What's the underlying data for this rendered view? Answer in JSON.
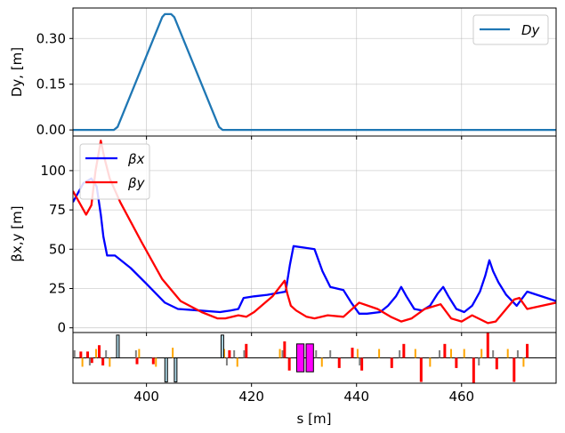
{
  "chart_data": [
    {
      "type": "line",
      "panel": "dispersion",
      "ylabel": "Dy, [m]",
      "ylim": [
        -0.02,
        0.4
      ],
      "yticks": [
        0.0,
        0.15,
        0.3
      ],
      "ytick_labels": [
        "0.00",
        "0.15",
        "0.30"
      ],
      "xlim": [
        386,
        478
      ],
      "grid": true,
      "legend_position": "top-right",
      "series": [
        {
          "name": "Dy",
          "color": "#1f77b4",
          "x": [
            386,
            393.8,
            394.5,
            403.0,
            403.5,
            404.7,
            405.3,
            413.8,
            414.5,
            478
          ],
          "y": [
            0.0,
            0.0,
            0.01,
            0.37,
            0.38,
            0.38,
            0.37,
            0.01,
            0.0,
            0.0
          ]
        }
      ]
    },
    {
      "type": "line",
      "panel": "beta",
      "ylabel": "βx,y [m]",
      "ylim": [
        -3,
        122
      ],
      "yticks": [
        0,
        25,
        50,
        75,
        100
      ],
      "ytick_labels": [
        "0",
        "25",
        "50",
        "75",
        "100"
      ],
      "xlim": [
        386,
        478
      ],
      "grid": true,
      "legend_position": "top-left",
      "series": [
        {
          "name": "βx",
          "color": "#0000ff",
          "x": [
            386,
            388,
            389.5,
            390.5,
            391.3,
            391.8,
            392.5,
            394,
            397,
            400,
            403.5,
            406,
            410,
            414,
            416,
            417.5,
            418.5,
            420.5,
            423,
            426.5,
            427.3,
            428,
            430,
            432,
            433.5,
            435,
            437.5,
            439,
            440.5,
            442,
            444.5,
            446,
            447.5,
            448.5,
            449.5,
            451,
            452.5,
            454,
            455.5,
            456.5,
            457.5,
            459,
            460.5,
            462,
            463.5,
            464.5,
            465.3,
            466,
            467,
            468.5,
            470.5,
            472.5,
            478
          ],
          "y": [
            80,
            92,
            95,
            90,
            72,
            58,
            46,
            46,
            38,
            28,
            16,
            12,
            11,
            10,
            11,
            12,
            19,
            20,
            21,
            23,
            40,
            52,
            51,
            50,
            36,
            26,
            24,
            16,
            9,
            9,
            10,
            14,
            20,
            26,
            20,
            12,
            11,
            14,
            22,
            26,
            20,
            12,
            10,
            14,
            23,
            33,
            43,
            36,
            29,
            21,
            14,
            23,
            17
          ]
        },
        {
          "name": "βy",
          "color": "#ff0000",
          "x": [
            386,
            388.5,
            389.5,
            390.3,
            391.3,
            392.0,
            393.0,
            395.0,
            399.0,
            403.0,
            406.5,
            410.5,
            413.5,
            415.0,
            417.5,
            419.0,
            420.5,
            424.0,
            426.3,
            426.8,
            427.5,
            428.5,
            430.5,
            432.0,
            434.5,
            437.5,
            440.5,
            444.0,
            446.5,
            448.5,
            450.5,
            453.0,
            456.0,
            458.0,
            460.0,
            462.0,
            465.0,
            466.5,
            468.0,
            470.0,
            471.0,
            472.5,
            478.0
          ],
          "y": [
            87,
            72,
            78,
            100,
            119,
            108,
            95,
            80,
            55,
            31,
            17,
            10,
            6,
            6,
            8,
            7,
            10,
            20,
            30,
            22,
            14,
            11,
            7,
            6,
            8,
            7,
            16,
            12,
            7,
            4,
            6,
            12,
            15,
            6,
            4,
            8,
            3,
            4,
            10,
            18,
            19,
            12,
            16
          ]
        }
      ]
    },
    {
      "type": "bar",
      "panel": "lattice",
      "xlabel": "s [m]",
      "xticks": [
        400,
        420,
        440,
        460
      ],
      "xtick_labels": [
        "400",
        "420",
        "440",
        "460"
      ],
      "xlim": [
        386,
        478
      ],
      "ylim": [
        -1,
        1
      ],
      "colors": {
        "quad_neg": "#ff0000",
        "quad_pos": "#ff0000",
        "sext": "#ffa500",
        "marker": "#808080",
        "dipole": "#add8e6",
        "block": "#ff00ff"
      },
      "elements": [
        {
          "kind": "quad",
          "s": 387.5,
          "h": 0.25
        },
        {
          "kind": "quad",
          "s": 388.8,
          "h": 0.25
        },
        {
          "kind": "quad",
          "s": 389.6,
          "h": -0.2
        },
        {
          "kind": "quad",
          "s": 391.0,
          "h": 0.5
        },
        {
          "kind": "quad",
          "s": 391.7,
          "h": -0.3
        },
        {
          "kind": "quad",
          "s": 398.2,
          "h": -0.25
        },
        {
          "kind": "quad",
          "s": 401.3,
          "h": -0.25
        },
        {
          "kind": "quad",
          "s": 415.8,
          "h": 0.3
        },
        {
          "kind": "quad",
          "s": 419.0,
          "h": 0.55
        },
        {
          "kind": "quad",
          "s": 426.3,
          "h": 0.65
        },
        {
          "kind": "quad",
          "s": 427.2,
          "h": -0.5
        },
        {
          "kind": "quad",
          "s": 436.7,
          "h": -0.4
        },
        {
          "kind": "quad",
          "s": 439.2,
          "h": 0.4
        },
        {
          "kind": "quad",
          "s": 441.0,
          "h": -0.5
        },
        {
          "kind": "quad",
          "s": 446.7,
          "h": -0.4
        },
        {
          "kind": "quad",
          "s": 449.0,
          "h": 0.55
        },
        {
          "kind": "quad",
          "s": 452.3,
          "h": -0.95
        },
        {
          "kind": "quad",
          "s": 456.8,
          "h": 0.55
        },
        {
          "kind": "quad",
          "s": 459.0,
          "h": -0.4
        },
        {
          "kind": "quad",
          "s": 462.3,
          "h": -1.0
        },
        {
          "kind": "quad",
          "s": 465.0,
          "h": 1.0
        },
        {
          "kind": "quad",
          "s": 466.7,
          "h": -0.45
        },
        {
          "kind": "quad",
          "s": 470.0,
          "h": -0.95
        },
        {
          "kind": "quad",
          "s": 472.5,
          "h": 0.55
        },
        {
          "kind": "sext",
          "s": 387.8,
          "h": -0.35
        },
        {
          "kind": "sext",
          "s": 390.4,
          "h": 0.35
        },
        {
          "kind": "sext",
          "s": 393.0,
          "h": -0.35
        },
        {
          "kind": "sext",
          "s": 398.6,
          "h": 0.35
        },
        {
          "kind": "sext",
          "s": 401.8,
          "h": -0.35
        },
        {
          "kind": "sext",
          "s": 405.0,
          "h": 0.4
        },
        {
          "kind": "sext",
          "s": 414.8,
          "h": 0.35
        },
        {
          "kind": "sext",
          "s": 417.3,
          "h": -0.35
        },
        {
          "kind": "sext",
          "s": 425.4,
          "h": 0.35
        },
        {
          "kind": "sext",
          "s": 433.4,
          "h": -0.35
        },
        {
          "kind": "sext",
          "s": 440.2,
          "h": 0.35
        },
        {
          "kind": "sext",
          "s": 444.3,
          "h": 0.35
        },
        {
          "kind": "sext",
          "s": 451.2,
          "h": 0.35
        },
        {
          "kind": "sext",
          "s": 454.0,
          "h": -0.35
        },
        {
          "kind": "sext",
          "s": 458.0,
          "h": 0.35
        },
        {
          "kind": "sext",
          "s": 460.5,
          "h": 0.35
        },
        {
          "kind": "sext",
          "s": 463.8,
          "h": 0.35
        },
        {
          "kind": "sext",
          "s": 468.8,
          "h": 0.35
        },
        {
          "kind": "sext",
          "s": 471.8,
          "h": -0.35
        },
        {
          "kind": "marker",
          "s": 386.3,
          "h": 0.3
        },
        {
          "kind": "marker",
          "s": 389.2,
          "h": -0.3
        },
        {
          "kind": "marker",
          "s": 392.3,
          "h": 0.3
        },
        {
          "kind": "marker",
          "s": 398.0,
          "h": 0.3
        },
        {
          "kind": "marker",
          "s": 415.3,
          "h": -0.3
        },
        {
          "kind": "marker",
          "s": 416.7,
          "h": 0.3
        },
        {
          "kind": "marker",
          "s": 418.6,
          "h": 0.3
        },
        {
          "kind": "marker",
          "s": 425.9,
          "h": 0.3
        },
        {
          "kind": "marker",
          "s": 432.3,
          "h": 0.3
        },
        {
          "kind": "marker",
          "s": 435.0,
          "h": 0.3
        },
        {
          "kind": "marker",
          "s": 440.6,
          "h": -0.3
        },
        {
          "kind": "marker",
          "s": 448.2,
          "h": 0.3
        },
        {
          "kind": "marker",
          "s": 455.8,
          "h": 0.3
        },
        {
          "kind": "marker",
          "s": 463.3,
          "h": -0.3
        },
        {
          "kind": "marker",
          "s": 466.0,
          "h": 0.3
        },
        {
          "kind": "marker",
          "s": 470.7,
          "h": 0.3
        },
        {
          "kind": "dipole",
          "s0": 394.3,
          "s1": 394.8,
          "h": 0.9
        },
        {
          "kind": "dipole",
          "s0": 403.5,
          "s1": 404.0,
          "h": -0.95
        },
        {
          "kind": "dipole",
          "s0": 405.3,
          "s1": 405.8,
          "h": -0.95
        },
        {
          "kind": "dipole",
          "s0": 414.2,
          "s1": 414.7,
          "h": 0.9
        },
        {
          "kind": "block",
          "s0": 428.6,
          "s1": 430.0,
          "h": 0.55
        },
        {
          "kind": "block",
          "s0": 430.4,
          "s1": 431.8,
          "h": 0.55
        }
      ]
    }
  ]
}
